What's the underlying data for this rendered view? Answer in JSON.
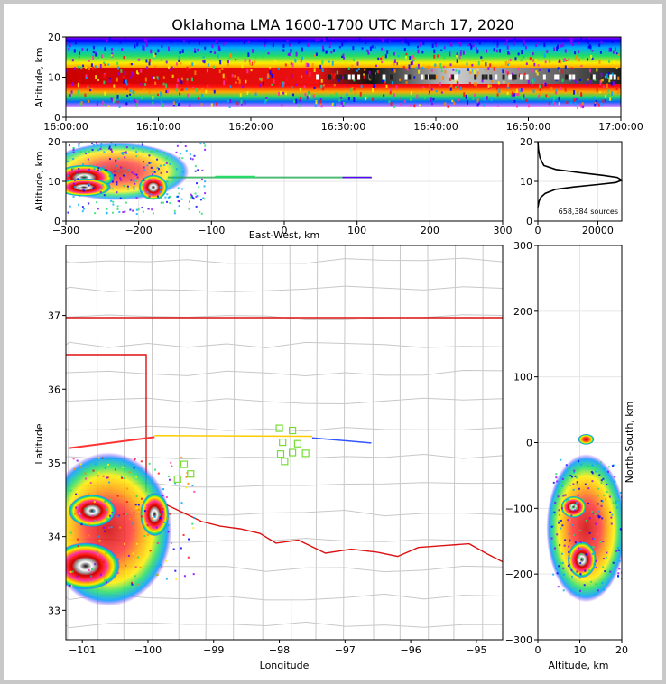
{
  "chart_data": [
    {
      "id": "time-height",
      "type": "heatmap",
      "title": "Oklahoma LMA 1600-1700 UTC March 17, 2020",
      "xlabel": "",
      "ylabel": "Altitude, km",
      "x_tick_labels": [
        "16:00:00",
        "16:10:00",
        "16:20:00",
        "16:30:00",
        "16:40:00",
        "16:50:00",
        "17:00:00"
      ],
      "x_ticks_minutes": [
        0,
        10,
        20,
        30,
        40,
        50,
        60
      ],
      "y_ticks": [
        0,
        10,
        20
      ],
      "ylim": [
        0,
        20
      ],
      "description_values": {
        "dense_band_center_km": 10,
        "band_top_km": 20,
        "band_bottom_km": 3
      }
    },
    {
      "id": "east-west-altitude",
      "type": "heatmap",
      "xlabel": "East-West, km",
      "ylabel": "Altitude, km",
      "xlim": [
        -300,
        300
      ],
      "ylim": [
        0,
        20
      ],
      "x_ticks": [
        -300,
        -200,
        -100,
        0,
        100,
        200,
        300
      ],
      "y_ticks": [
        0,
        10,
        20
      ],
      "blobs": [
        {
          "x": -275,
          "y": 11,
          "weight": 1.0
        },
        {
          "x": -275,
          "y": 8.5,
          "weight": 0.9
        },
        {
          "x": -180,
          "y": 8.5,
          "weight": 0.7
        }
      ],
      "anvil_line": {
        "x_from": -160,
        "x_to": 120,
        "y": 11
      }
    },
    {
      "id": "altitude-histogram",
      "type": "line",
      "xlim": [
        0,
        28000
      ],
      "ylim": [
        0,
        20
      ],
      "x_ticks": [
        0,
        20000
      ],
      "y_ticks": [
        0,
        10,
        20
      ],
      "annotation": "658,384 sources",
      "x": [
        0,
        200,
        700,
        2000,
        6000,
        14000,
        22000,
        26500,
        28000,
        26000,
        20000,
        12000,
        6000,
        2500,
        1000,
        400,
        150,
        0
      ],
      "y": [
        20,
        18,
        16,
        14,
        13,
        12.2,
        11.5,
        11,
        10.3,
        9.7,
        9.2,
        8.6,
        8,
        7,
        6,
        5,
        4,
        3.5
      ]
    },
    {
      "id": "plan-view",
      "type": "scatter",
      "xlabel": "Longitude",
      "ylabel": "Latitude",
      "xlim": [
        -101.25,
        -94.6
      ],
      "ylim": [
        32.6,
        37.95
      ],
      "x_tick_labels": [
        "−101",
        "−100",
        "−99",
        "−98",
        "−97",
        "−96",
        "−95"
      ],
      "x_ticks": [
        -101,
        -100,
        -99,
        -98,
        -97,
        -96,
        -95
      ],
      "y_ticks": [
        33,
        34,
        35,
        36,
        37
      ],
      "stations": [
        {
          "lon": -98.0,
          "lat": 35.47
        },
        {
          "lon": -97.8,
          "lat": 35.44
        },
        {
          "lon": -97.95,
          "lat": 35.28
        },
        {
          "lon": -97.72,
          "lat": 35.26
        },
        {
          "lon": -97.8,
          "lat": 35.14
        },
        {
          "lon": -97.6,
          "lat": 35.13
        },
        {
          "lon": -97.98,
          "lat": 35.12
        },
        {
          "lon": -97.92,
          "lat": 35.02
        },
        {
          "lon": -99.45,
          "lat": 34.98
        },
        {
          "lon": -99.35,
          "lat": 34.85
        },
        {
          "lon": -99.55,
          "lat": 34.78
        }
      ]
    },
    {
      "id": "altitude-north-south",
      "type": "heatmap",
      "xlabel": "Altitude, km",
      "ylabel": "North-South, km",
      "xlim": [
        0,
        20
      ],
      "ylim": [
        -300,
        300
      ],
      "x_ticks": [
        0,
        10,
        20
      ],
      "y_ticks": [
        -300,
        -200,
        -100,
        0,
        100,
        200,
        300
      ]
    }
  ],
  "colors": {
    "state_border": "#dd1111",
    "county_lines": "#c8c8c8",
    "station_marker": "#77dd33",
    "frame_border": "#c8c8c8"
  }
}
